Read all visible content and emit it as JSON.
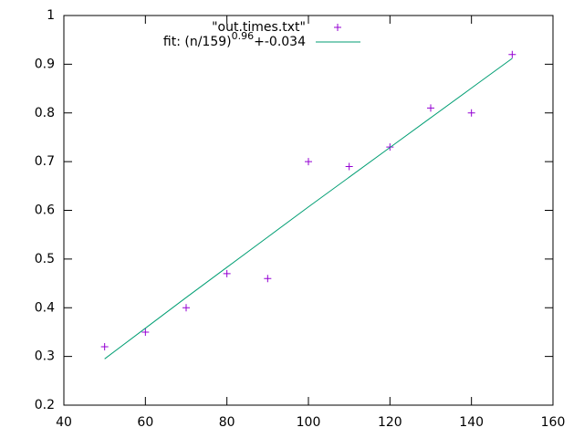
{
  "chart_data": {
    "type": "scatter",
    "xlim": [
      40,
      160
    ],
    "xticks": [
      40,
      60,
      80,
      100,
      120,
      140,
      160
    ],
    "ylim": [
      0.2,
      1
    ],
    "yticks": [
      0.2,
      0.3,
      0.4,
      0.5,
      0.6,
      0.7,
      0.8,
      0.9,
      1
    ],
    "series": [
      {
        "name": "\"out.times.txt\"",
        "color": "#9400d3",
        "style": "points",
        "x": [
          50,
          60,
          70,
          80,
          90,
          100,
          110,
          120,
          130,
          140,
          150
        ],
        "values": [
          0.32,
          0.35,
          0.4,
          0.47,
          0.46,
          0.7,
          0.69,
          0.73,
          0.81,
          0.8,
          0.92
        ]
      },
      {
        "name": [
          "fit: (n/159)",
          "0.96",
          "+-0.034"
        ],
        "color": "#009e73",
        "style": "line",
        "x": [
          50,
          60,
          70,
          80,
          90,
          100,
          110,
          120,
          130,
          140,
          150
        ],
        "values": [
          0.295,
          0.358,
          0.421,
          0.483,
          0.545,
          0.607,
          0.668,
          0.729,
          0.79,
          0.851,
          0.912
        ]
      }
    ]
  }
}
